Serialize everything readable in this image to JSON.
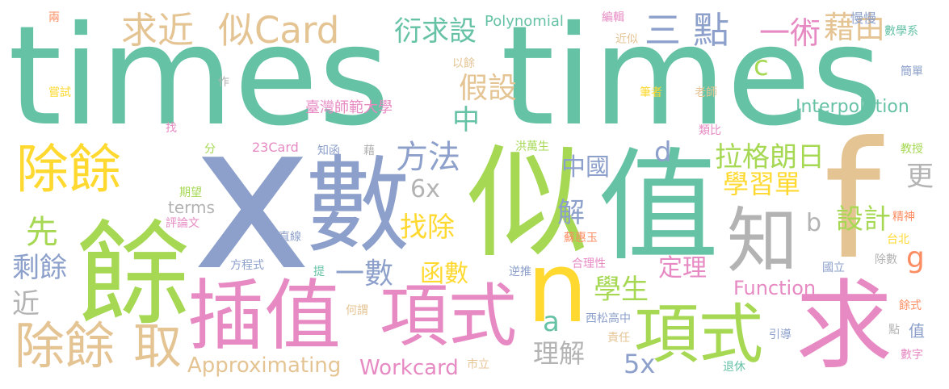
{
  "palette": {
    "teal": "#66c2a5",
    "orange": "#fc8d62",
    "blue": "#8da0cb",
    "pink": "#e78ac3",
    "green": "#a6d854",
    "yellow": "#ffd92f",
    "tan": "#e5c494",
    "gray": "#b3b3b3"
  },
  "words": [
    {
      "text": "times",
      "color": "#66c2a5"
    },
    {
      "text": "times",
      "color": "#66c2a5"
    },
    {
      "text": "x",
      "color": "#8da0cb"
    },
    {
      "text": "數",
      "color": "#8da0cb"
    },
    {
      "text": "似",
      "color": "#a6d854"
    },
    {
      "text": "值",
      "color": "#66c2a5"
    },
    {
      "text": "餘",
      "color": "#a6d854"
    },
    {
      "text": "f",
      "color": "#e5c494"
    },
    {
      "text": "求",
      "color": "#e78ac3"
    },
    {
      "text": "n",
      "color": "#ffd92f"
    },
    {
      "text": "插值",
      "color": "#e78ac3"
    },
    {
      "text": "項式",
      "color": "#e78ac3"
    },
    {
      "text": "項式",
      "color": "#a6d854"
    },
    {
      "text": "除餘",
      "color": "#ffd92f"
    },
    {
      "text": "除餘",
      "color": "#e5c494"
    },
    {
      "text": "取",
      "color": "#e5c494"
    },
    {
      "text": "知",
      "color": "#b3b3b3"
    },
    {
      "text": "求近",
      "color": "#e5c494"
    },
    {
      "text": "似Card",
      "color": "#e5c494"
    },
    {
      "text": "三",
      "color": "#8da0cb"
    },
    {
      "text": "點",
      "color": "#8da0cb"
    },
    {
      "text": "一術",
      "color": "#e78ac3"
    },
    {
      "text": "藉由",
      "color": "#e5c494"
    },
    {
      "text": "衍求設",
      "color": "#66c2a5"
    },
    {
      "text": "假設",
      "color": "#e5c494"
    },
    {
      "text": "中",
      "color": "#66c2a5"
    },
    {
      "text": "方法",
      "color": "#8da0cb"
    },
    {
      "text": "拉格朗日",
      "color": "#a6d854"
    },
    {
      "text": "學習單",
      "color": "#ffd92f"
    },
    {
      "text": "中國",
      "color": "#8da0cb"
    },
    {
      "text": "d",
      "color": "#8da0cb"
    },
    {
      "text": "6x",
      "color": "#b3b3b3"
    },
    {
      "text": "解",
      "color": "#8da0cb"
    },
    {
      "text": "找除",
      "color": "#ffd92f"
    },
    {
      "text": "設計",
      "color": "#a6d854"
    },
    {
      "text": "b",
      "color": "#b3b3b3"
    },
    {
      "text": "更",
      "color": "#b3b3b3"
    },
    {
      "text": "g",
      "color": "#fc8d62"
    },
    {
      "text": "先",
      "color": "#a6d854"
    },
    {
      "text": "剩餘",
      "color": "#8da0cb"
    },
    {
      "text": "近",
      "color": "#b3b3b3"
    },
    {
      "text": "一數",
      "color": "#8da0cb"
    },
    {
      "text": "函數",
      "color": "#ffd92f"
    },
    {
      "text": "學生",
      "color": "#a6d854"
    },
    {
      "text": "定理",
      "color": "#e78ac3"
    },
    {
      "text": "a",
      "color": "#66c2a5"
    },
    {
      "text": "理解",
      "color": "#b3b3b3"
    },
    {
      "text": "5x",
      "color": "#8da0cb"
    },
    {
      "text": "Approximating",
      "color": "#e5c494"
    },
    {
      "text": "Workcard",
      "color": "#e78ac3"
    },
    {
      "text": "Function",
      "color": "#e78ac3"
    },
    {
      "text": "Interpolation",
      "color": "#66c2a5"
    },
    {
      "text": "c",
      "color": "#a6d854"
    },
    {
      "text": "Polynomial",
      "color": "#66c2a5"
    },
    {
      "text": "terms",
      "color": "#b3b3b3"
    },
    {
      "text": "臺灣師範大學",
      "color": "#e78ac3"
    },
    {
      "text": "23Card",
      "color": "#e78ac3"
    },
    {
      "text": "知函",
      "color": "#8da0cb"
    },
    {
      "text": "藉",
      "color": "#b3b3b3"
    },
    {
      "text": "洪萬生",
      "color": "#a6d854"
    },
    {
      "text": "以餘",
      "color": "#e5c494"
    },
    {
      "text": "編輯",
      "color": "#e78ac3"
    },
    {
      "text": "近似",
      "color": "#e5c494"
    },
    {
      "text": "慢慢",
      "color": "#8da0cb"
    },
    {
      "text": "數學系",
      "color": "#66c2a5"
    },
    {
      "text": "簡單",
      "color": "#8da0cb"
    },
    {
      "text": "筆者",
      "color": "#ffd92f"
    },
    {
      "text": "老師",
      "color": "#e5c494"
    },
    {
      "text": "類比",
      "color": "#e78ac3"
    },
    {
      "text": "教授",
      "color": "#a6d854"
    },
    {
      "text": "精神",
      "color": "#fc8d62"
    },
    {
      "text": "台北",
      "color": "#ffd92f"
    },
    {
      "text": "國立",
      "color": "#8da0cb"
    },
    {
      "text": "除數",
      "color": "#b3b3b3"
    },
    {
      "text": "餘式",
      "color": "#fc8d62"
    },
    {
      "text": "點",
      "color": "#b3b3b3"
    },
    {
      "text": "值",
      "color": "#8da0cb"
    },
    {
      "text": "數字",
      "color": "#e78ac3"
    },
    {
      "text": "引導",
      "color": "#8da0cb"
    },
    {
      "text": "退休",
      "color": "#66c2a5"
    },
    {
      "text": "責任",
      "color": "#e5c494"
    },
    {
      "text": "西松高中",
      "color": "#8da0cb"
    },
    {
      "text": "市立",
      "color": "#e5c494"
    },
    {
      "text": "蘇惠玉",
      "color": "#fc8d62"
    },
    {
      "text": "合理性",
      "color": "#e78ac3"
    },
    {
      "text": "逆推",
      "color": "#8da0cb"
    },
    {
      "text": "何謂",
      "color": "#e5c494"
    },
    {
      "text": "提",
      "color": "#66c2a5"
    },
    {
      "text": "方程式",
      "color": "#8da0cb"
    },
    {
      "text": "直線",
      "color": "#8da0cb"
    },
    {
      "text": "評論文",
      "color": "#e78ac3"
    },
    {
      "text": "期望",
      "color": "#a6d854"
    },
    {
      "text": "分",
      "color": "#a6d854"
    },
    {
      "text": "找",
      "color": "#e78ac3"
    },
    {
      "text": "作",
      "color": "#b3b3b3"
    },
    {
      "text": "嘗試",
      "color": "#ffd92f"
    },
    {
      "text": "兩",
      "color": "#fc8d62"
    }
  ]
}
